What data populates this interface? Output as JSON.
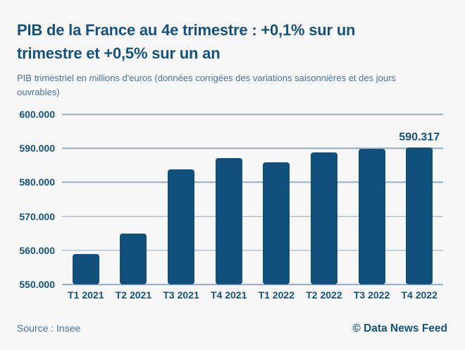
{
  "colors": {
    "accent": "#14527d",
    "bar": "#114f7d",
    "muted_blue": "#46729f",
    "gridline": "#8fa9c6",
    "background": "#f7f7f8"
  },
  "header": {
    "title_line1": "PIB de la France au 4e trimestre : +0,1% sur un",
    "title_line2": "trimestre et +0,5% sur un an",
    "subtitle": "PIB trimestriel en millions d'euros (données corrigées des variations saisonnières et des jours ouvrables)"
  },
  "footer": {
    "source": "Source : Insee",
    "credit": "© Data News Feed"
  },
  "chart_data": {
    "type": "bar",
    "title": "PIB de la France au 4e trimestre : +0,1% sur un trimestre et +0,5% sur un an",
    "xlabel": "",
    "ylabel": "PIB trimestriel en millions d'euros",
    "categories": [
      "T1 2021",
      "T2 2021",
      "T3 2021",
      "T4 2021",
      "T1 2022",
      "T2 2022",
      "T3 2022",
      "T4 2022"
    ],
    "values": [
      558900,
      565000,
      583900,
      587100,
      585900,
      588800,
      589800,
      590317
    ],
    "value_labels": [
      "",
      "",
      "",
      "",
      "",
      "",
      "",
      "590.317"
    ],
    "ylim": [
      550000,
      600000
    ],
    "yticks": [
      {
        "value": 600000,
        "label": "600.000"
      },
      {
        "value": 590000,
        "label": "590.000"
      },
      {
        "value": 580000,
        "label": "580.000"
      },
      {
        "value": 570000,
        "label": "570.000"
      },
      {
        "value": 560000,
        "label": "560.000"
      },
      {
        "value": 550000,
        "label": "550.000"
      }
    ],
    "grid": true,
    "legend": false,
    "bar_color": "#114f7d"
  }
}
